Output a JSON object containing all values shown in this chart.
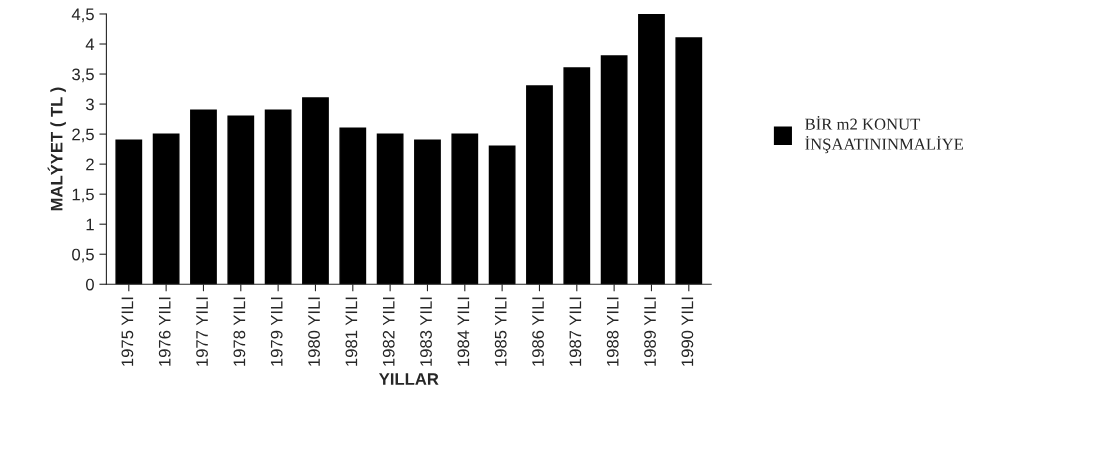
{
  "chart_data": {
    "type": "bar",
    "xlabel": "YILLAR",
    "ylabel": "MALÝYET ( TL )",
    "categories": [
      "1975 YILI",
      "1976 YILI",
      "1977 YILI",
      "1978 YILI",
      "1979 YILI",
      "1980 YILI",
      "1981 YILI",
      "1982 YILI",
      "1983 YILI",
      "1984 YILI",
      "1985 YILI",
      "1986 YILI",
      "1987 YILI",
      "1988 YILI",
      "1989 YILI",
      "1990 YILI"
    ],
    "series": [
      {
        "name": "BİR m2 KONUT\nİNŞAATININMALİYE",
        "color": "#000000",
        "values": [
          2.4,
          2.5,
          2.9,
          2.8,
          2.9,
          3.1,
          2.6,
          2.5,
          2.4,
          2.5,
          2.3,
          3.3,
          3.6,
          3.8,
          4.5,
          4.1
        ]
      }
    ],
    "ylim": [
      0,
      4.5
    ],
    "yticks": [
      0,
      {
        "value": 0.5,
        "label": "0,5"
      },
      1,
      {
        "value": 1.5,
        "label": "1,5"
      },
      2,
      {
        "value": 2.5,
        "label": "2,5"
      },
      3,
      {
        "value": 3.5,
        "label": "3,5"
      },
      4,
      {
        "value": 4.5,
        "label": "4,5"
      }
    ],
    "grid": false,
    "legend": "right"
  }
}
